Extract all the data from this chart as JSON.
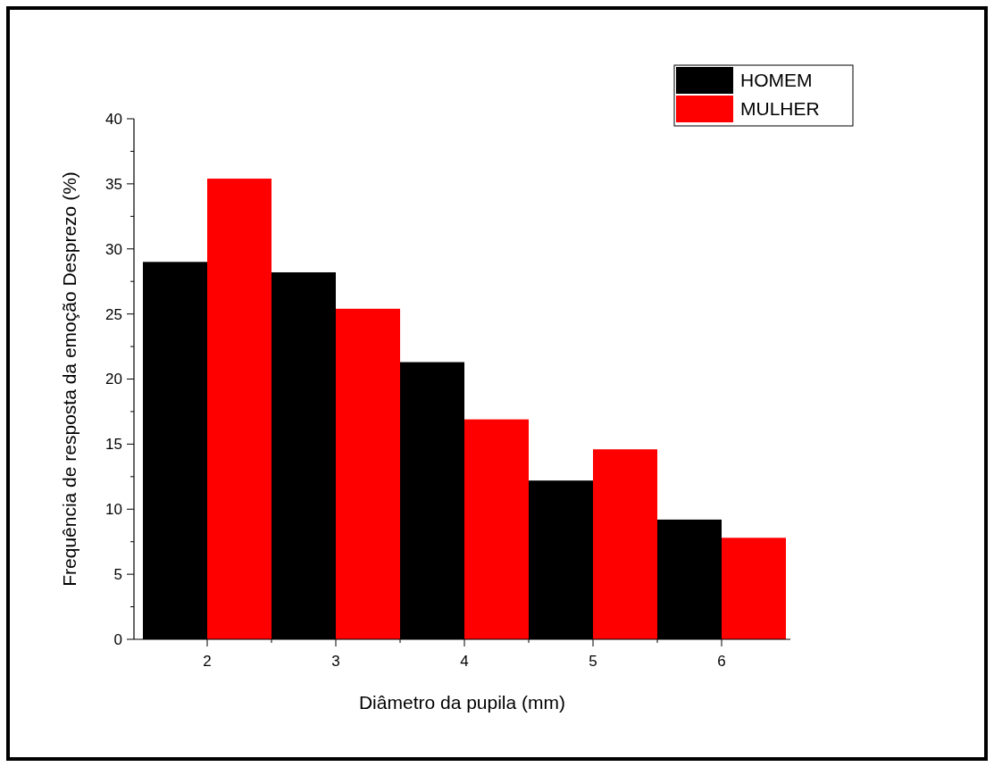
{
  "chart_data": {
    "type": "bar",
    "xlabel": "Diâmetro da pupila (mm)",
    "ylabel": "Frequência de resposta da emoção Desprezo (%)",
    "categories": [
      "2",
      "3",
      "4",
      "5",
      "6"
    ],
    "series": [
      {
        "name": "HOMEM",
        "color": "#000000",
        "values": [
          29.0,
          28.2,
          21.3,
          12.2,
          9.2
        ]
      },
      {
        "name": "MULHER",
        "color": "#ff0000",
        "values": [
          35.4,
          25.4,
          16.9,
          14.6,
          7.8
        ]
      }
    ],
    "ylim": [
      0,
      40
    ],
    "yticks": [
      0,
      5,
      10,
      15,
      20,
      25,
      30,
      35,
      40
    ],
    "grid": false,
    "legend": "top right"
  }
}
